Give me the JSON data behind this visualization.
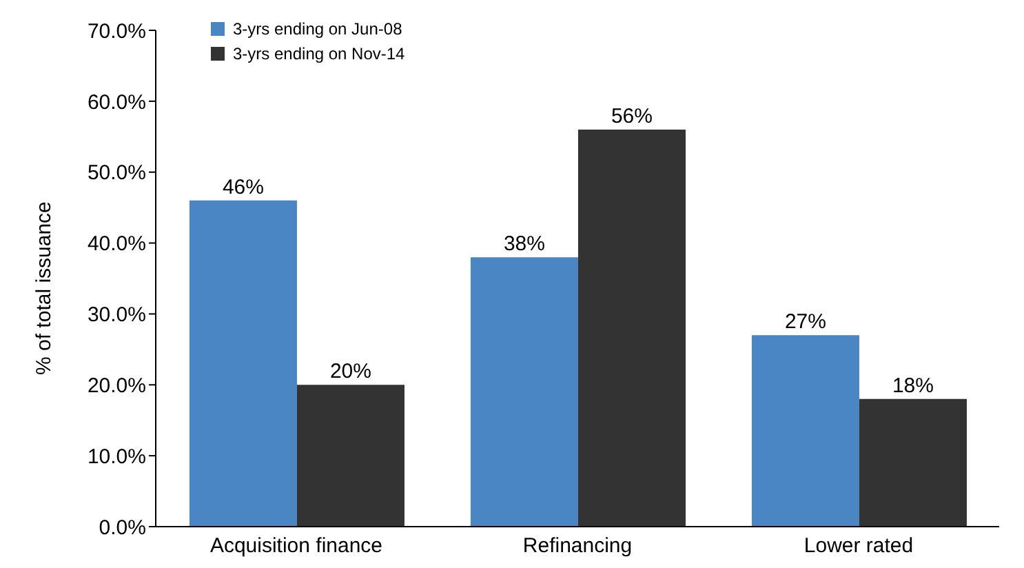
{
  "chart_data": {
    "type": "bar",
    "ylabel": "% of total issuance",
    "categories": [
      "Acquisition finance",
      "Refinancing",
      "Lower rated"
    ],
    "series": [
      {
        "name": "3-yrs ending on Jun-08",
        "color": "#4a86c4",
        "values": [
          46,
          38,
          27
        ],
        "value_labels": [
          "46%",
          "38%",
          "27%"
        ]
      },
      {
        "name": "3-yrs ending on Nov-14",
        "color": "#333333",
        "values": [
          20,
          56,
          18
        ],
        "value_labels": [
          "20%",
          "56%",
          "18%"
        ]
      }
    ],
    "ylim": [
      0,
      70
    ],
    "yticks": [
      {
        "value": 0,
        "label": "0.0%"
      },
      {
        "value": 10,
        "label": "10.0%"
      },
      {
        "value": 20,
        "label": "20.0%"
      },
      {
        "value": 30,
        "label": "30.0%"
      },
      {
        "value": 40,
        "label": "40.0%"
      },
      {
        "value": 50,
        "label": "50.0%"
      },
      {
        "value": 60,
        "label": "60.0%"
      },
      {
        "value": 70,
        "label": "70.0%"
      }
    ],
    "grid": false,
    "legend": "top left"
  }
}
